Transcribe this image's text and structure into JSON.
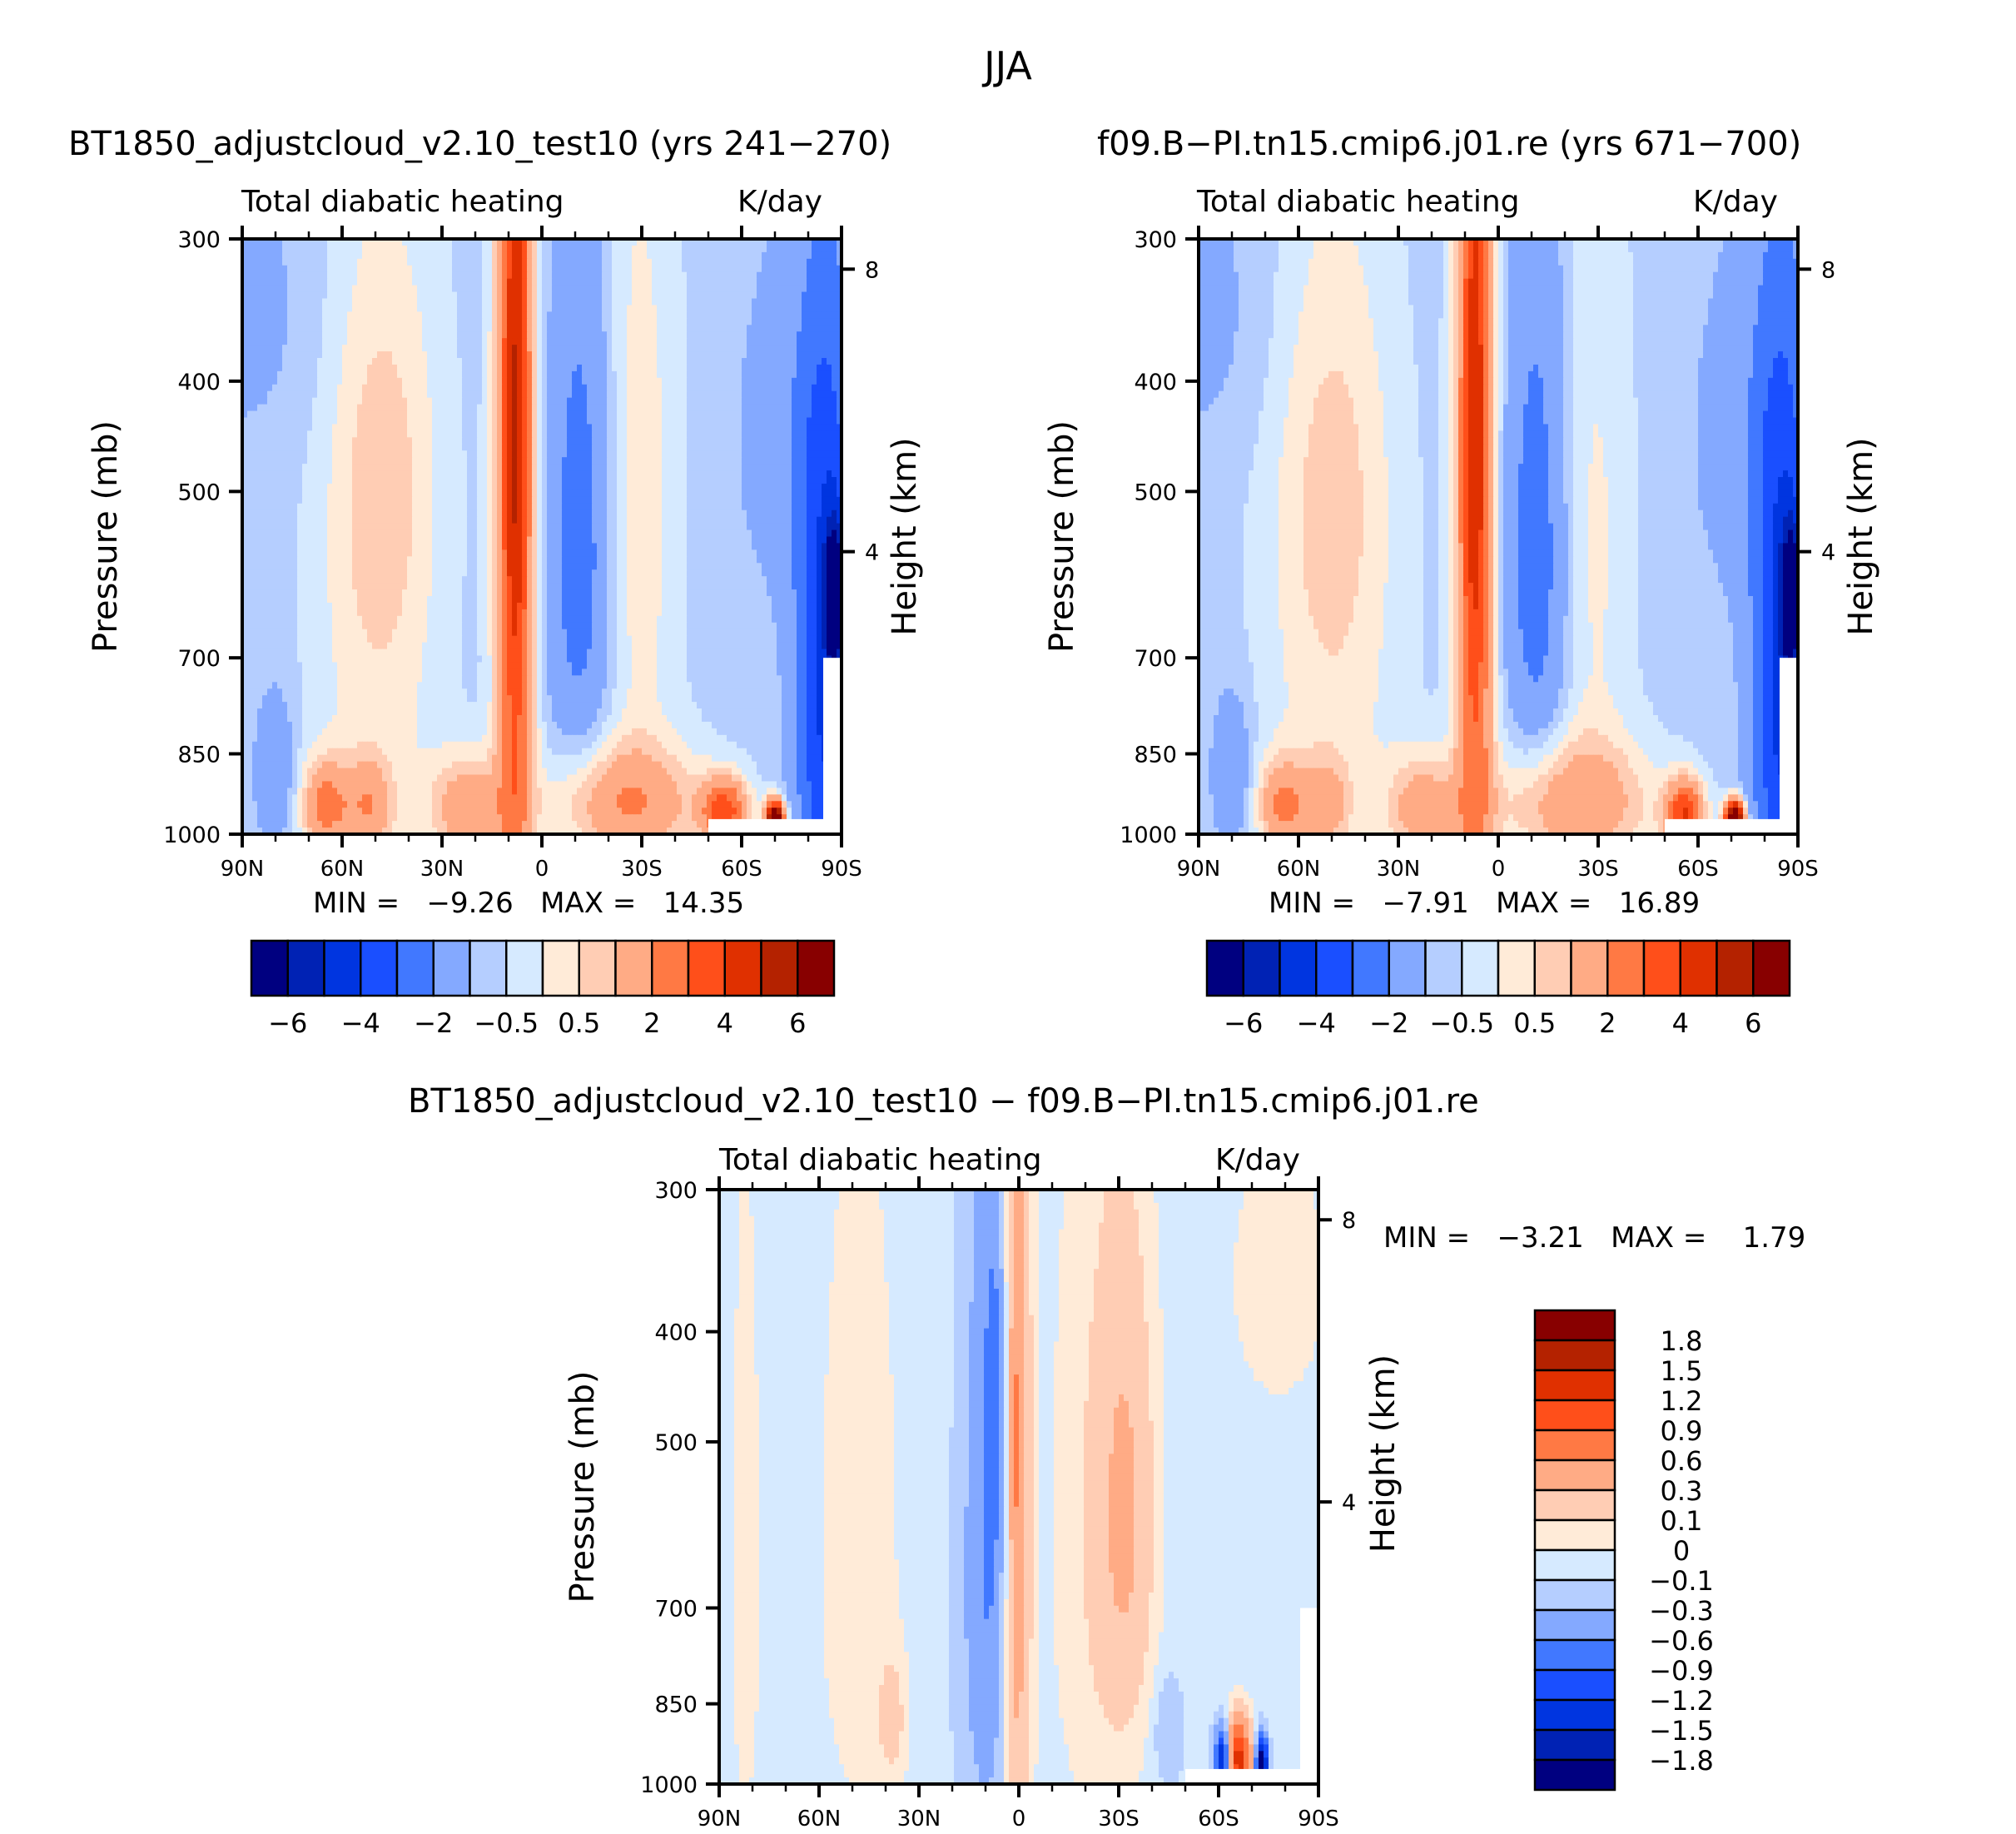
{
  "figure": {
    "title": "JJA"
  },
  "chart_data": [
    {
      "type": "heatmap",
      "id": "panel1",
      "title": "BT1850_adjustcloud_v2.10_test10 (yrs 241-270)",
      "subtitle_left": "Total diabatic heating",
      "subtitle_right": "K/day",
      "xlabel": "",
      "ylabel": "Pressure (mb)",
      "ylabel_right": "Height (km)",
      "x_ticks": [
        "90N",
        "60N",
        "30N",
        "0",
        "30S",
        "60S",
        "90S"
      ],
      "x_range": [
        90,
        -90
      ],
      "y_ticks": [
        "300",
        "400",
        "500",
        "700",
        "850",
        "1000"
      ],
      "y_tick_values": [
        300,
        400,
        500,
        700,
        850,
        1000
      ],
      "y_range": [
        300,
        1000
      ],
      "y_right_ticks": [
        "8",
        "4"
      ],
      "y_right_tick_values_km": [
        8,
        4
      ],
      "min_label": "MIN =",
      "min_value": "-9.26",
      "max_label": "MAX =",
      "max_value": "14.35",
      "colorbar": {
        "orientation": "horizontal",
        "levels": [
          -6,
          -5,
          -4,
          -3,
          -2,
          -1,
          -0.5,
          0,
          0.5,
          1,
          2,
          3,
          4,
          5,
          6
        ],
        "labels": [
          "-6",
          "-4",
          "-2",
          "-0.5",
          "0.5",
          "2",
          "4",
          "6"
        ],
        "colors": [
          "#000080",
          "#0022b4",
          "#0035e0",
          "#1a4fff",
          "#4178ff",
          "#84a9ff",
          "#b5ceff",
          "#d6eaff",
          "#ffebd8",
          "#ffcdb4",
          "#ffab85",
          "#ff7944",
          "#ff4f1a",
          "#e03000",
          "#b42200",
          "#880000"
        ]
      },
      "field": {
        "background": -0.7,
        "components": [
          {
            "lat": 8,
            "p": 520,
            "dlat": 4,
            "dp": 420,
            "amp": 4.6
          },
          {
            "lat": 8,
            "p": 420,
            "dlat": 2.5,
            "dp": 150,
            "amp": 1.5
          },
          {
            "lat": -12,
            "p": 560,
            "dlat": 7,
            "dp": 220,
            "amp": -2.0
          },
          {
            "lat": -28,
            "p": 520,
            "dlat": 9,
            "dp": 260,
            "amp": 1.1
          },
          {
            "lat": 48,
            "p": 470,
            "dlat": 12,
            "dp": 160,
            "amp": 1.3
          },
          {
            "lat": 50,
            "p": 820,
            "dlat": 14,
            "dp": 240,
            "amp": 0.8
          },
          {
            "lat": 65,
            "p": 945,
            "dlat": 5,
            "dp": 60,
            "amp": 2.8
          },
          {
            "lat": 52,
            "p": 945,
            "dlat": 5,
            "dp": 60,
            "amp": 2.0
          },
          {
            "lat": 22,
            "p": 950,
            "dlat": 8,
            "dp": 70,
            "amp": 2.4
          },
          {
            "lat": -25,
            "p": 940,
            "dlat": 16,
            "dp": 80,
            "amp": 2.6
          },
          {
            "lat": -55,
            "p": 955,
            "dlat": 5,
            "dp": 45,
            "amp": 4.0
          },
          {
            "lat": -70,
            "p": 970,
            "dlat": 2,
            "dp": 25,
            "amp": 9.0
          },
          {
            "lat": 80,
            "p": 880,
            "dlat": 4,
            "dp": 90,
            "amp": -1.3
          },
          {
            "lat": -85,
            "p": 760,
            "dlat": 6,
            "dp": 300,
            "amp": -3.5
          },
          {
            "lat": -80,
            "p": 450,
            "dlat": 14,
            "dp": 120,
            "amp": -0.9
          },
          {
            "lat": -88,
            "p": 620,
            "dlat": 2,
            "dp": 60,
            "amp": -6.0
          },
          {
            "lat": 90,
            "p": 350,
            "dlat": 18,
            "dp": 80,
            "amp": -0.5
          }
        ]
      },
      "masked_region": {
        "lat_from": -50,
        "lat_to": -90,
        "p_from": 970,
        "p_to": 1000
      }
    },
    {
      "type": "heatmap",
      "id": "panel2",
      "title": "f09.B-PI.tn15.cmip6.j01.re (yrs 671-700)",
      "subtitle_left": "Total diabatic heating",
      "subtitle_right": "K/day",
      "xlabel": "",
      "ylabel": "Pressure (mb)",
      "ylabel_right": "Height (km)",
      "x_ticks": [
        "90N",
        "60N",
        "30N",
        "0",
        "30S",
        "60S",
        "90S"
      ],
      "x_range": [
        90,
        -90
      ],
      "y_ticks": [
        "300",
        "400",
        "500",
        "700",
        "850",
        "1000"
      ],
      "y_tick_values": [
        300,
        400,
        500,
        700,
        850,
        1000
      ],
      "y_range": [
        300,
        1000
      ],
      "y_right_ticks": [
        "8",
        "4"
      ],
      "y_right_tick_values_km": [
        8,
        4
      ],
      "min_label": "MIN =",
      "min_value": "-7.91",
      "max_label": "MAX =",
      "max_value": "16.89",
      "colorbar": {
        "orientation": "horizontal",
        "levels": [
          -6,
          -5,
          -4,
          -3,
          -2,
          -1,
          -0.5,
          0,
          0.5,
          1,
          2,
          3,
          4,
          5,
          6
        ],
        "labels": [
          "-6",
          "-4",
          "-2",
          "-0.5",
          "0.5",
          "2",
          "4",
          "6"
        ],
        "colors": [
          "#000080",
          "#0022b4",
          "#0035e0",
          "#1a4fff",
          "#4178ff",
          "#84a9ff",
          "#b5ceff",
          "#d6eaff",
          "#ffebd8",
          "#ffcdb4",
          "#ffab85",
          "#ff7944",
          "#ff4f1a",
          "#e03000",
          "#b42200",
          "#880000"
        ]
      },
      "field": {
        "background": -0.7,
        "components": [
          {
            "lat": 7,
            "p": 520,
            "dlat": 4,
            "dp": 420,
            "amp": 4.3
          },
          {
            "lat": 7,
            "p": 430,
            "dlat": 2.5,
            "dp": 150,
            "amp": 1.5
          },
          {
            "lat": -12,
            "p": 570,
            "dlat": 7,
            "dp": 230,
            "amp": -2.0
          },
          {
            "lat": -27,
            "p": 560,
            "dlat": 9,
            "dp": 260,
            "amp": 0.9
          },
          {
            "lat": 50,
            "p": 470,
            "dlat": 13,
            "dp": 170,
            "amp": 1.2
          },
          {
            "lat": 50,
            "p": 820,
            "dlat": 15,
            "dp": 240,
            "amp": 0.8
          },
          {
            "lat": 65,
            "p": 945,
            "dlat": 5,
            "dp": 60,
            "amp": 2.6
          },
          {
            "lat": 52,
            "p": 945,
            "dlat": 5,
            "dp": 60,
            "amp": 1.8
          },
          {
            "lat": 22,
            "p": 950,
            "dlat": 8,
            "dp": 70,
            "amp": 2.2
          },
          {
            "lat": -22,
            "p": 940,
            "dlat": 17,
            "dp": 85,
            "amp": 2.5
          },
          {
            "lat": -56,
            "p": 960,
            "dlat": 4,
            "dp": 45,
            "amp": 4.5
          },
          {
            "lat": -71,
            "p": 970,
            "dlat": 2,
            "dp": 25,
            "amp": 10.0
          },
          {
            "lat": 80,
            "p": 880,
            "dlat": 4,
            "dp": 90,
            "amp": -1.3
          },
          {
            "lat": -85,
            "p": 760,
            "dlat": 6,
            "dp": 300,
            "amp": -3.6
          },
          {
            "lat": -80,
            "p": 450,
            "dlat": 14,
            "dp": 120,
            "amp": -0.9
          },
          {
            "lat": -88,
            "p": 620,
            "dlat": 2,
            "dp": 60,
            "amp": -5.5
          },
          {
            "lat": 90,
            "p": 350,
            "dlat": 18,
            "dp": 80,
            "amp": -0.5
          }
        ]
      },
      "masked_region": {
        "lat_from": -50,
        "lat_to": -90,
        "p_from": 970,
        "p_to": 1000
      }
    },
    {
      "type": "heatmap",
      "id": "panel3",
      "title": "BT1850_adjustcloud_v2.10_test10 - f09.B-PI.tn15.cmip6.j01.re",
      "subtitle_left": "Total diabatic heating",
      "subtitle_right": "K/day",
      "xlabel": "",
      "ylabel": "Pressure (mb)",
      "ylabel_right": "Height (km)",
      "x_ticks": [
        "90N",
        "60N",
        "30N",
        "0",
        "30S",
        "60S",
        "90S"
      ],
      "x_range": [
        90,
        -90
      ],
      "y_ticks": [
        "300",
        "400",
        "500",
        "700",
        "850",
        "1000"
      ],
      "y_tick_values": [
        300,
        400,
        500,
        700,
        850,
        1000
      ],
      "y_range": [
        300,
        1000
      ],
      "y_right_ticks": [
        "8",
        "4"
      ],
      "y_right_tick_values_km": [
        8,
        4
      ],
      "min_label": "MIN =",
      "min_value": "-3.21",
      "max_label": "MAX =",
      "max_value": "1.79",
      "colorbar": {
        "orientation": "vertical",
        "levels": [
          -1.8,
          -1.5,
          -1.2,
          -0.9,
          -0.6,
          -0.3,
          -0.1,
          0,
          0.1,
          0.3,
          0.6,
          0.9,
          1.2,
          1.5,
          1.8
        ],
        "labels": [
          "1.8",
          "1.5",
          "1.2",
          "0.9",
          "0.6",
          "0.3",
          "0.1",
          "0",
          "-0.1",
          "-0.3",
          "-0.6",
          "-0.9",
          "-1.2",
          "-1.5",
          "-1.8"
        ],
        "colors": [
          "#000080",
          "#0022b4",
          "#0035e0",
          "#1a4fff",
          "#4178ff",
          "#84a9ff",
          "#b5ceff",
          "#d6eaff",
          "#ffebd8",
          "#ffcdb4",
          "#ffab85",
          "#ff7944",
          "#ff4f1a",
          "#e03000",
          "#b42200",
          "#880000"
        ]
      },
      "field": {
        "background": -0.05,
        "components": [
          {
            "lat": 1,
            "p": 560,
            "dlat": 3,
            "dp": 420,
            "amp": 0.55
          },
          {
            "lat": 1,
            "p": 500,
            "dlat": 1.2,
            "dp": 60,
            "amp": 0.4
          },
          {
            "lat": 8,
            "p": 560,
            "dlat": 4,
            "dp": 320,
            "amp": -0.55
          },
          {
            "lat": 7,
            "p": 470,
            "dlat": 1.5,
            "dp": 80,
            "amp": -0.4
          },
          {
            "lat": 14,
            "p": 700,
            "dlat": 4,
            "dp": 300,
            "amp": -0.2
          },
          {
            "lat": -32,
            "p": 580,
            "dlat": 6,
            "dp": 200,
            "amp": 0.35
          },
          {
            "lat": -22,
            "p": 600,
            "dlat": 9,
            "dp": 320,
            "amp": 0.12
          },
          {
            "lat": 48,
            "p": 620,
            "dlat": 8,
            "dp": 280,
            "amp": 0.13
          },
          {
            "lat": 82,
            "p": 650,
            "dlat": 3,
            "dp": 280,
            "amp": 0.12
          },
          {
            "lat": -78,
            "p": 360,
            "dlat": 10,
            "dp": 70,
            "amp": 0.12
          },
          {
            "lat": -66,
            "p": 950,
            "dlat": 2.5,
            "dp": 50,
            "amp": 1.4
          },
          {
            "lat": -61,
            "p": 950,
            "dlat": 1.5,
            "dp": 40,
            "amp": -1.6
          },
          {
            "lat": -73,
            "p": 960,
            "dlat": 1.2,
            "dp": 35,
            "amp": -2.2
          },
          {
            "lat": 38,
            "p": 880,
            "dlat": 3,
            "dp": 80,
            "amp": 0.2
          },
          {
            "lat": -45,
            "p": 900,
            "dlat": 3,
            "dp": 70,
            "amp": -0.2
          }
        ]
      },
      "masked_region": {
        "lat_from": -50,
        "lat_to": -90,
        "p_from": 970,
        "p_to": 1000
      }
    }
  ]
}
